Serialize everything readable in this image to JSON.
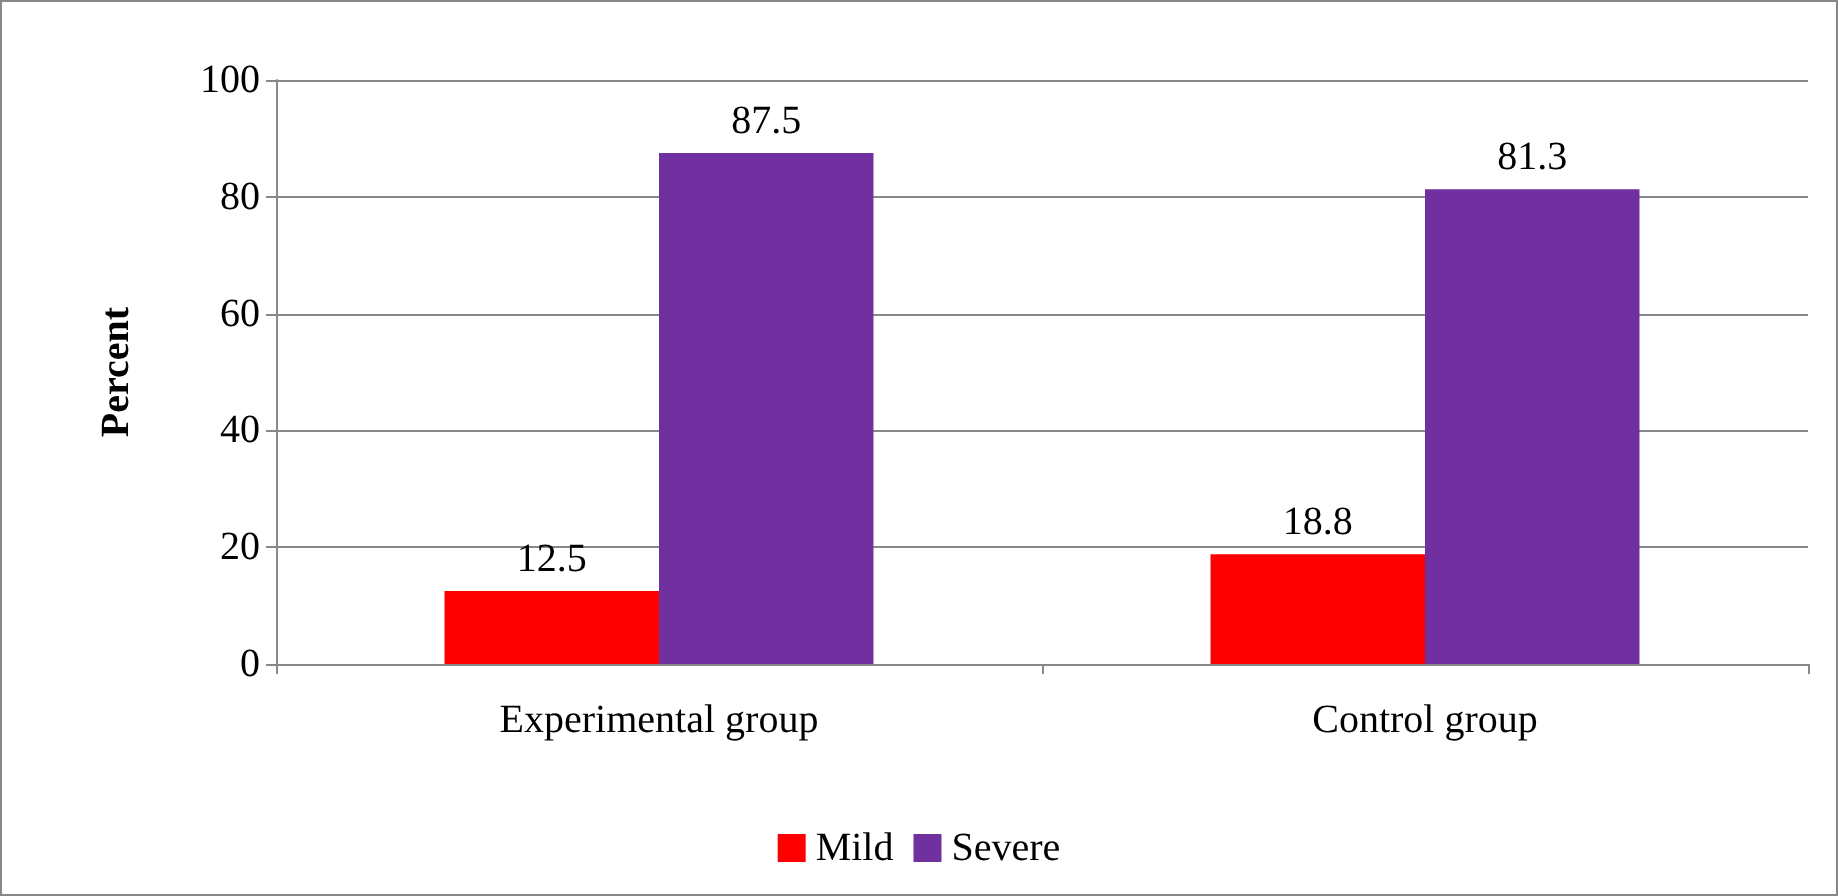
{
  "chart_data": {
    "type": "bar",
    "ylabel": "Percent",
    "categories": [
      "Experimental group",
      "Control group"
    ],
    "series": [
      {
        "name": "Mild",
        "color": "#ff0000",
        "values": [
          12.5,
          18.8
        ]
      },
      {
        "name": "Severe",
        "color": "#7030a0",
        "values": [
          87.5,
          81.3
        ]
      }
    ],
    "ylim": [
      0,
      100
    ],
    "yticks": [
      0,
      20,
      40,
      60,
      80,
      100
    ],
    "grid": "y",
    "legend": "bottom",
    "data_labels": true
  }
}
